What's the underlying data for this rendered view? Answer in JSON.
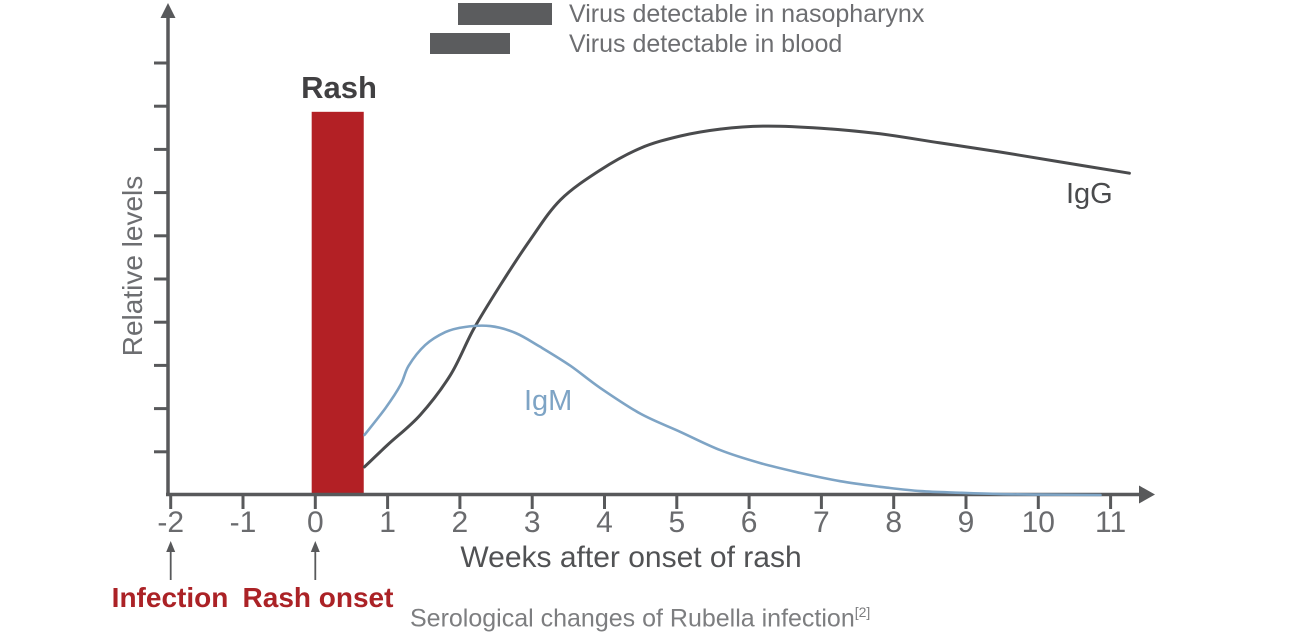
{
  "legend": {
    "items": [
      {
        "label": "Virus detectable in nasopharynx"
      },
      {
        "label": "Virus detectable in blood"
      }
    ]
  },
  "annotations": {
    "rash": "Rash",
    "infection": "Infection",
    "rash_onset": "Rash onset",
    "igg": "IgG",
    "igm": "IgM"
  },
  "caption": {
    "text": "Serological changes of Rubella infection",
    "sup": "[2]"
  },
  "colors": {
    "axis": "#58595b",
    "tick_text": "#6a6b6e",
    "legend_bar": "#5b5c5e",
    "legend_text": "#6d6e71",
    "rash_bar": "#b32025",
    "red_text": "#ab2226",
    "igg": "#4a4b4d",
    "igm": "#7ea4c5",
    "axis_title_text": "#515254",
    "caption_text": "#7d7e80",
    "rash_title_text": "#414042"
  },
  "chart_data": {
    "type": "line",
    "title": "Serological changes of Rubella infection",
    "xlabel": "Weeks after onset of rash",
    "ylabel": "Relative levels",
    "xlim": [
      -2,
      11.6
    ],
    "ylim": [
      0,
      10
    ],
    "grid": false,
    "legend_position": "top",
    "x_ticks": [
      -2,
      -1,
      0,
      1,
      2,
      3,
      4,
      5,
      6,
      7,
      8,
      9,
      10,
      11
    ],
    "y_tick_count": 10,
    "series": [
      {
        "name": "IgG",
        "color": "#4a4b4d",
        "points": [
          [
            0.68,
            0.65
          ],
          [
            1.0,
            1.16
          ],
          [
            1.45,
            1.85
          ],
          [
            1.87,
            2.78
          ],
          [
            2.19,
            3.84
          ],
          [
            2.56,
            4.86
          ],
          [
            2.97,
            5.9
          ],
          [
            3.39,
            6.83
          ],
          [
            3.94,
            7.52
          ],
          [
            4.5,
            8.03
          ],
          [
            5.05,
            8.31
          ],
          [
            5.6,
            8.47
          ],
          [
            6.21,
            8.54
          ],
          [
            6.99,
            8.49
          ],
          [
            7.81,
            8.36
          ],
          [
            8.64,
            8.15
          ],
          [
            9.47,
            7.94
          ],
          [
            10.3,
            7.71
          ],
          [
            11.26,
            7.45
          ]
        ]
      },
      {
        "name": "IgM",
        "color": "#7ea4c5",
        "points": [
          [
            0.68,
            1.39
          ],
          [
            0.97,
            2.01
          ],
          [
            1.18,
            2.55
          ],
          [
            1.29,
            2.99
          ],
          [
            1.52,
            3.47
          ],
          [
            1.8,
            3.77
          ],
          [
            2.07,
            3.89
          ],
          [
            2.42,
            3.91
          ],
          [
            2.77,
            3.75
          ],
          [
            3.11,
            3.43
          ],
          [
            3.53,
            2.99
          ],
          [
            3.94,
            2.48
          ],
          [
            4.5,
            1.88
          ],
          [
            5.05,
            1.46
          ],
          [
            5.6,
            1.04
          ],
          [
            6.15,
            0.74
          ],
          [
            6.71,
            0.51
          ],
          [
            7.26,
            0.32
          ],
          [
            7.81,
            0.19
          ],
          [
            8.37,
            0.09
          ],
          [
            8.92,
            0.05
          ],
          [
            9.47,
            0.02
          ],
          [
            10.03,
            0.01
          ],
          [
            10.86,
            0.0
          ]
        ]
      }
    ],
    "bars": [
      {
        "name": "Rash",
        "x_start": -0.05,
        "x_end": 0.67,
        "height": 8.87,
        "color": "#b32025"
      }
    ],
    "markers": [
      {
        "label": "Infection",
        "week": -2
      },
      {
        "label": "Rash onset",
        "week": 0
      }
    ]
  }
}
